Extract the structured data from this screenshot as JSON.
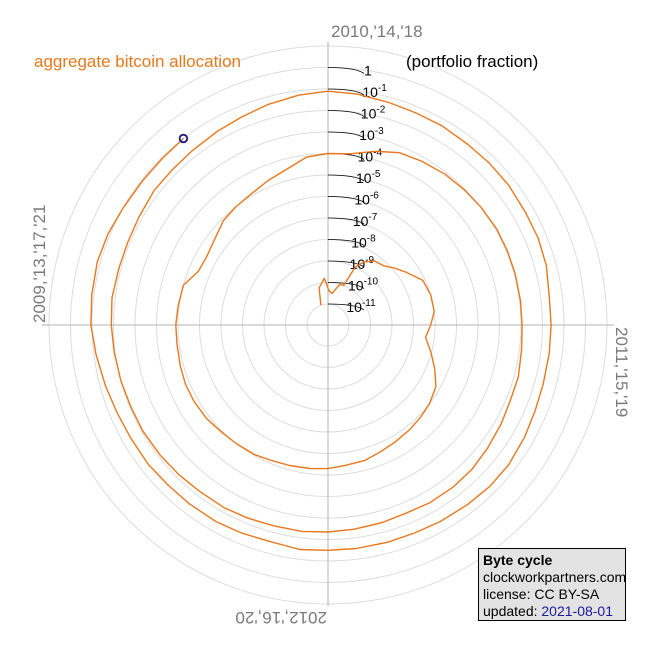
{
  "chart_data": {
    "type": "line",
    "title": "aggregate bitcoin allocation",
    "radial_axis_title": "(portfolio fraction)",
    "radial_scale": "log",
    "radial_ticks": [
      {
        "base": "1",
        "exp": ""
      },
      {
        "base": "10",
        "exp": "-1"
      },
      {
        "base": "10",
        "exp": "-2"
      },
      {
        "base": "10",
        "exp": "-3"
      },
      {
        "base": "10",
        "exp": "-4"
      },
      {
        "base": "10",
        "exp": "-5"
      },
      {
        "base": "10",
        "exp": "-6"
      },
      {
        "base": "10",
        "exp": "-7"
      },
      {
        "base": "10",
        "exp": "-8"
      },
      {
        "base": "10",
        "exp": "-9"
      },
      {
        "base": "10",
        "exp": "-10"
      },
      {
        "base": "10",
        "exp": "-11"
      }
    ],
    "angular_labels": {
      "top": "2010,'14,'18",
      "right": "2011,'15,'19",
      "bottom": "2012,'16,'20",
      "left": "2009,'13,'17,'21"
    },
    "cycle_years": 4,
    "series": [
      {
        "color": "#e8781e",
        "points": [
          [
            2009.78,
            -11.0
          ],
          [
            2009.85,
            -10.2
          ],
          [
            2009.95,
            -9.8
          ],
          [
            2010.02,
            -10.4
          ],
          [
            2010.08,
            -10.5
          ],
          [
            2010.18,
            -10.0
          ],
          [
            2010.24,
            -10.0
          ],
          [
            2010.28,
            -9.0
          ],
          [
            2010.33,
            -8.6
          ],
          [
            2010.4,
            -8.3
          ],
          [
            2010.48,
            -8.2
          ],
          [
            2010.55,
            -7.9
          ],
          [
            2010.62,
            -7.6
          ],
          [
            2010.72,
            -7.1
          ],
          [
            2010.82,
            -7.0
          ],
          [
            2010.92,
            -7.0
          ],
          [
            2011.0,
            -7.2
          ],
          [
            2011.08,
            -7.4
          ],
          [
            2011.17,
            -7.0
          ],
          [
            2011.25,
            -6.6
          ],
          [
            2011.33,
            -6.2
          ],
          [
            2011.42,
            -6.0
          ],
          [
            2011.5,
            -5.9
          ],
          [
            2011.58,
            -5.8
          ],
          [
            2011.67,
            -5.7
          ],
          [
            2011.75,
            -5.6
          ],
          [
            2011.83,
            -5.45
          ],
          [
            2011.92,
            -5.4
          ],
          [
            2012.0,
            -5.3
          ],
          [
            2012.08,
            -5.25
          ],
          [
            2012.17,
            -5.2
          ],
          [
            2012.25,
            -5.15
          ],
          [
            2012.33,
            -5.05
          ],
          [
            2012.42,
            -5.0
          ],
          [
            2012.5,
            -4.95
          ],
          [
            2012.58,
            -4.85
          ],
          [
            2012.67,
            -4.8
          ],
          [
            2012.75,
            -4.8
          ],
          [
            2012.83,
            -4.85
          ],
          [
            2012.92,
            -4.9
          ],
          [
            2013.0,
            -4.9
          ],
          [
            2013.08,
            -4.95
          ],
          [
            2013.17,
            -5.0
          ],
          [
            2013.25,
            -5.45
          ],
          [
            2013.33,
            -5.5
          ],
          [
            2013.42,
            -5.35
          ],
          [
            2013.5,
            -5.1
          ],
          [
            2013.58,
            -5.0
          ],
          [
            2013.67,
            -4.9
          ],
          [
            2013.75,
            -4.7
          ],
          [
            2013.83,
            -4.5
          ],
          [
            2013.92,
            -4.1
          ],
          [
            2014.0,
            -4.0
          ],
          [
            2014.08,
            -3.95
          ],
          [
            2014.17,
            -3.6
          ],
          [
            2014.25,
            -3.3
          ],
          [
            2014.33,
            -3.2
          ],
          [
            2014.42,
            -3.1
          ],
          [
            2014.5,
            -3.05
          ],
          [
            2014.58,
            -3.0
          ],
          [
            2014.67,
            -2.95
          ],
          [
            2014.75,
            -2.95
          ],
          [
            2014.83,
            -2.95
          ],
          [
            2014.92,
            -2.95
          ],
          [
            2015.0,
            -2.95
          ],
          [
            2015.08,
            -2.9
          ],
          [
            2015.17,
            -2.8
          ],
          [
            2015.25,
            -2.8
          ],
          [
            2015.33,
            -2.7
          ],
          [
            2015.42,
            -2.6
          ],
          [
            2015.5,
            -2.5
          ],
          [
            2015.58,
            -2.45
          ],
          [
            2015.67,
            -2.45
          ],
          [
            2015.75,
            -2.5
          ],
          [
            2015.83,
            -2.45
          ],
          [
            2015.92,
            -2.4
          ],
          [
            2016.0,
            -2.35
          ],
          [
            2016.08,
            -2.3
          ],
          [
            2016.17,
            -2.3
          ],
          [
            2016.25,
            -2.25
          ],
          [
            2016.33,
            -2.2
          ],
          [
            2016.42,
            -2.2
          ],
          [
            2016.5,
            -2.15
          ],
          [
            2016.58,
            -2.1
          ],
          [
            2016.67,
            -2.05
          ],
          [
            2016.75,
            -2.05
          ],
          [
            2016.83,
            -2.0
          ],
          [
            2016.92,
            -1.95
          ],
          [
            2017.0,
            -1.9
          ],
          [
            2017.08,
            -1.85
          ],
          [
            2017.17,
            -1.9
          ],
          [
            2017.25,
            -1.9
          ],
          [
            2017.33,
            -1.85
          ],
          [
            2017.42,
            -1.75
          ],
          [
            2017.5,
            -1.75
          ],
          [
            2017.58,
            -1.7
          ],
          [
            2017.67,
            -1.6
          ],
          [
            2017.75,
            -1.5
          ],
          [
            2017.83,
            -1.35
          ],
          [
            2017.92,
            -1.2
          ],
          [
            2018.0,
            -1.1
          ],
          [
            2018.08,
            -1.15
          ],
          [
            2018.17,
            -1.25
          ],
          [
            2018.25,
            -1.3
          ],
          [
            2018.33,
            -1.3
          ],
          [
            2018.42,
            -1.35
          ],
          [
            2018.5,
            -1.35
          ],
          [
            2018.58,
            -1.35
          ],
          [
            2018.67,
            -1.4
          ],
          [
            2018.75,
            -1.4
          ],
          [
            2018.83,
            -1.45
          ],
          [
            2018.92,
            -1.6
          ],
          [
            2019.0,
            -1.6
          ],
          [
            2019.08,
            -1.6
          ],
          [
            2019.17,
            -1.6
          ],
          [
            2019.25,
            -1.55
          ],
          [
            2019.33,
            -1.45
          ],
          [
            2019.42,
            -1.35
          ],
          [
            2019.5,
            -1.35
          ],
          [
            2019.58,
            -1.4
          ],
          [
            2019.67,
            -1.45
          ],
          [
            2019.75,
            -1.5
          ],
          [
            2019.83,
            -1.5
          ],
          [
            2019.92,
            -1.5
          ],
          [
            2020.0,
            -1.5
          ],
          [
            2020.08,
            -1.45
          ],
          [
            2020.17,
            -1.55
          ],
          [
            2020.25,
            -1.5
          ],
          [
            2020.33,
            -1.45
          ],
          [
            2020.42,
            -1.45
          ],
          [
            2020.5,
            -1.45
          ],
          [
            2020.58,
            -1.4
          ],
          [
            2020.67,
            -1.4
          ],
          [
            2020.75,
            -1.35
          ],
          [
            2020.83,
            -1.25
          ],
          [
            2020.92,
            -1.1
          ],
          [
            2021.0,
            -0.95
          ],
          [
            2021.08,
            -0.9
          ],
          [
            2021.17,
            -0.85
          ],
          [
            2021.25,
            -0.9
          ],
          [
            2021.33,
            -1.0
          ],
          [
            2021.42,
            -1.05
          ],
          [
            2021.5,
            -1.05
          ],
          [
            2021.58,
            -1.0
          ]
        ]
      }
    ],
    "current_point": [
      2021.58,
      -1.0
    ],
    "current_point_color": "#1a1a80"
  },
  "info_box": {
    "title": "Byte cycle",
    "source": "clockworkpartners.com",
    "license": "license: CC BY-SA",
    "updated_label": "updated: ",
    "updated_date": "2021-08-01"
  },
  "colors": {
    "series": "#e8781e",
    "grid": "#dcdcdc",
    "axis": "#b0b0b0",
    "labels": "#7a7a7a",
    "box_background": "#e3e3e3"
  }
}
